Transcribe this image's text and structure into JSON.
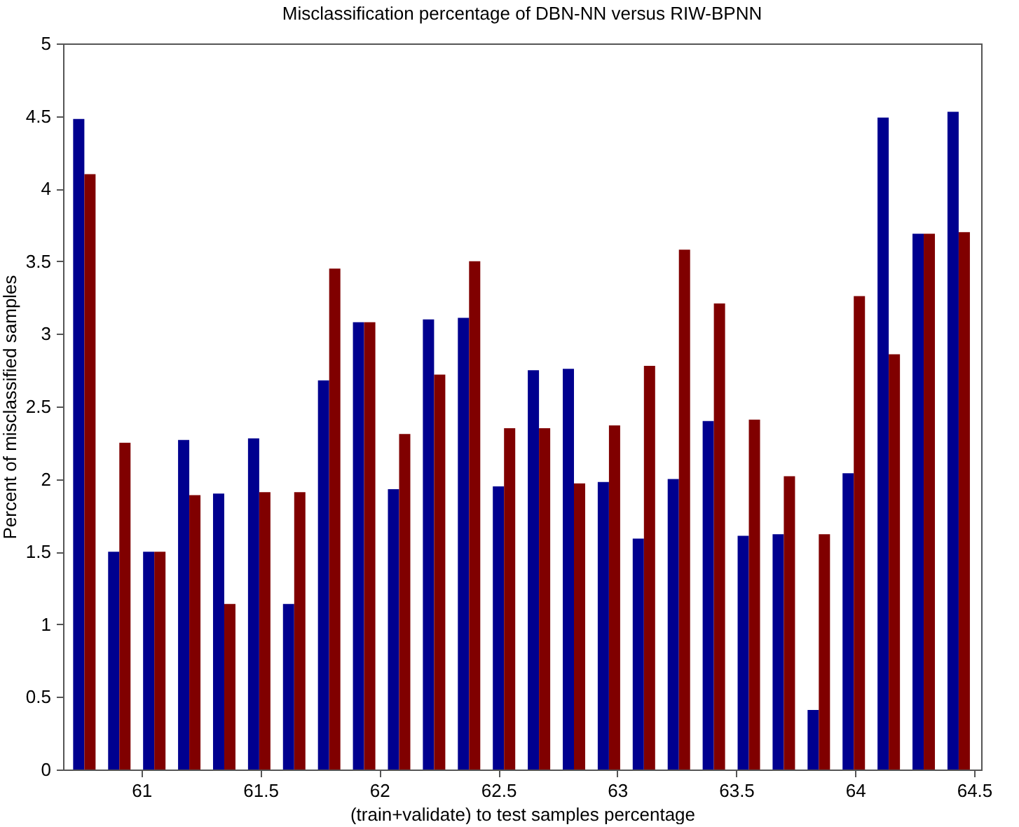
{
  "chart_data": {
    "type": "bar",
    "title": "Misclassification percentage of DBN-NN versus RIW-BPNN",
    "xlabel": "(train+validate) to test samples percentage",
    "ylabel": "Percent of misclassified samples",
    "x": [
      60.76,
      60.907,
      61.054,
      61.201,
      61.348,
      61.495,
      61.642,
      61.789,
      61.936,
      62.083,
      62.23,
      62.377,
      62.524,
      62.671,
      62.818,
      62.965,
      63.112,
      63.259,
      63.406,
      63.553,
      63.7,
      63.847,
      63.994,
      64.141,
      64.288,
      64.435
    ],
    "series": [
      {
        "color": "#00008f",
        "values": [
          4.48,
          1.5,
          1.5,
          2.27,
          1.9,
          2.28,
          1.14,
          2.68,
          3.08,
          1.93,
          3.1,
          3.11,
          1.95,
          2.75,
          2.76,
          1.98,
          1.59,
          2.0,
          2.4,
          1.61,
          1.62,
          0.41,
          2.04,
          4.49,
          3.69,
          4.53
        ]
      },
      {
        "color": "#800000",
        "values": [
          4.1,
          2.25,
          1.5,
          1.89,
          1.14,
          1.91,
          1.91,
          3.45,
          3.08,
          2.31,
          2.72,
          3.5,
          2.35,
          2.35,
          1.97,
          2.37,
          2.78,
          3.58,
          3.21,
          2.41,
          2.02,
          1.62,
          3.26,
          2.86,
          3.69,
          3.7
        ]
      }
    ],
    "xlim": [
      60.7,
      64.5
    ],
    "xticks": [
      61,
      61.5,
      62,
      62.5,
      63,
      63.5,
      64,
      64.5
    ],
    "ylim": [
      0,
      5
    ],
    "yticks": [
      0,
      0.5,
      1,
      1.5,
      2,
      2.5,
      3,
      3.5,
      4,
      4.5,
      5
    ],
    "grid": false,
    "legend": false
  }
}
